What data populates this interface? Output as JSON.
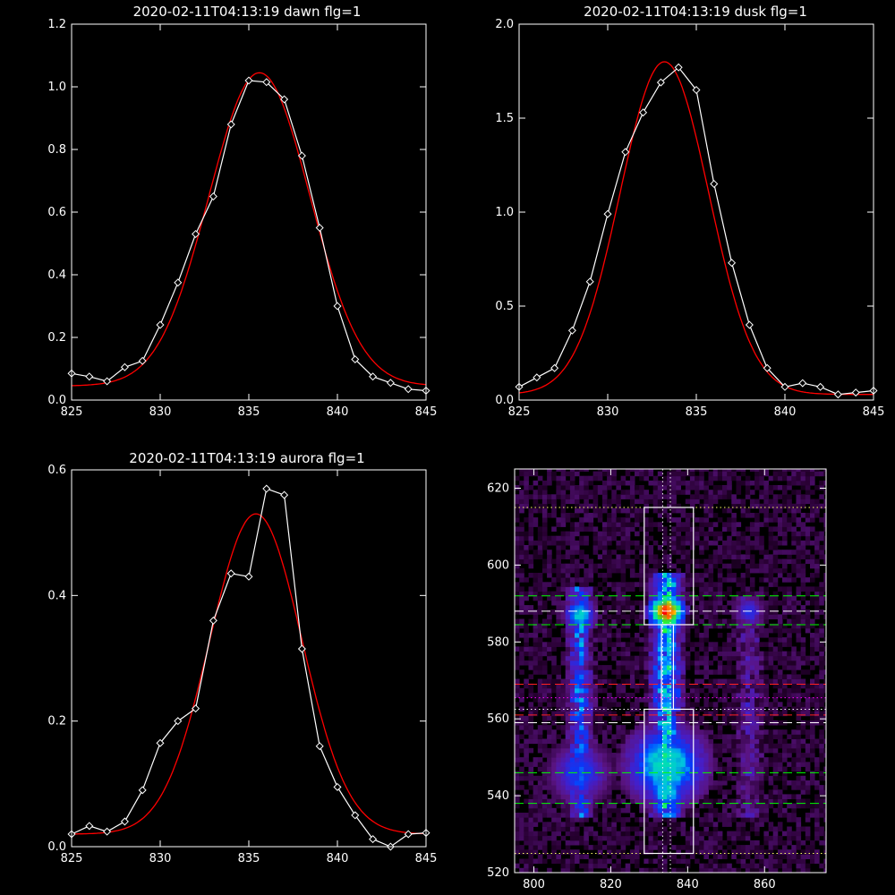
{
  "colors": {
    "background": "#000000",
    "axes": "#ffffff",
    "data": "#ffffff",
    "fit": "#ff0000",
    "guide_green": "#00ff00",
    "guide_red": "#ff2020",
    "guide_magenta": "#ff00ff"
  },
  "chart_data": [
    {
      "type": "line",
      "title": "2020-02-11T04:13:19 dawn flg=1",
      "xlim": [
        825,
        845
      ],
      "ylim": [
        0,
        1.2
      ],
      "xticks": [
        "825",
        "830",
        "835",
        "840",
        "845"
      ],
      "yticks": [
        "0.0",
        "0.2",
        "0.4",
        "0.6",
        "0.8",
        "1.0",
        "1.2"
      ],
      "xtick_values": [
        825,
        830,
        835,
        840,
        845
      ],
      "ytick_values": [
        0,
        0.2,
        0.4,
        0.6,
        0.8,
        1.0,
        1.2
      ],
      "series": [
        {
          "x": [
            825,
            826,
            827,
            828,
            829,
            830,
            831,
            832,
            833,
            834,
            835,
            836,
            837,
            838,
            839,
            840,
            841,
            842,
            843,
            844,
            845
          ],
          "y": [
            0.085,
            0.075,
            0.06,
            0.105,
            0.125,
            0.24,
            0.375,
            0.53,
            0.65,
            0.88,
            1.02,
            1.015,
            0.96,
            0.78,
            0.55,
            0.3,
            0.13,
            0.075,
            0.055,
            0.035,
            0.03
          ],
          "markers": "diamond"
        },
        {
          "fit": "gaussian",
          "amplitude": 1.0,
          "center": 835.6,
          "sigma": 2.85,
          "baseline": 0.045
        }
      ]
    },
    {
      "type": "line",
      "title": "2020-02-11T04:13:19 dusk flg=1",
      "xlim": [
        825,
        845
      ],
      "ylim": [
        0,
        2.0
      ],
      "xticks": [
        "825",
        "830",
        "835",
        "840",
        "845"
      ],
      "yticks": [
        "0.0",
        "0.5",
        "1.0",
        "1.5",
        "2.0"
      ],
      "xtick_values": [
        825,
        830,
        835,
        840,
        845
      ],
      "ytick_values": [
        0,
        0.5,
        1.0,
        1.5,
        2.0
      ],
      "series": [
        {
          "x": [
            825,
            826,
            827,
            828,
            829,
            830,
            831,
            832,
            833,
            834,
            835,
            836,
            837,
            838,
            839,
            840,
            841,
            842,
            843,
            844,
            845
          ],
          "y": [
            0.07,
            0.12,
            0.17,
            0.37,
            0.63,
            0.99,
            1.32,
            1.53,
            1.69,
            1.77,
            1.65,
            1.15,
            0.73,
            0.4,
            0.17,
            0.07,
            0.09,
            0.07,
            0.03,
            0.04,
            0.05
          ],
          "markers": "diamond"
        },
        {
          "fit": "gaussian",
          "amplitude": 1.77,
          "center": 833.2,
          "sigma": 2.5,
          "baseline": 0.03
        }
      ]
    },
    {
      "type": "line",
      "title": "2020-02-11T04:13:19 aurora flg=1",
      "xlim": [
        825,
        845
      ],
      "ylim": [
        0,
        0.6
      ],
      "xticks": [
        "825",
        "830",
        "835",
        "840",
        "845"
      ],
      "yticks": [
        "0.0",
        "0.2",
        "0.4",
        "0.6"
      ],
      "xtick_values": [
        825,
        830,
        835,
        840,
        845
      ],
      "ytick_values": [
        0,
        0.2,
        0.4,
        0.6
      ],
      "series": [
        {
          "x": [
            825,
            826,
            827,
            828,
            829,
            830,
            831,
            832,
            833,
            834,
            835,
            836,
            837,
            838,
            839,
            840,
            841,
            842,
            843,
            844,
            845
          ],
          "y": [
            0.02,
            0.033,
            0.024,
            0.04,
            0.09,
            0.165,
            0.2,
            0.22,
            0.36,
            0.435,
            0.43,
            0.57,
            0.56,
            0.315,
            0.16,
            0.095,
            0.05,
            0.012,
            -0.005,
            0.02,
            0.022
          ],
          "markers": "diamond"
        },
        {
          "fit": "gaussian",
          "amplitude": 0.51,
          "center": 835.4,
          "sigma": 2.6,
          "baseline": 0.02
        }
      ]
    },
    {
      "type": "heatmap",
      "xlim": [
        795,
        876
      ],
      "ylim": [
        520,
        625
      ],
      "xticks": [
        "800",
        "820",
        "840",
        "860"
      ],
      "yticks": [
        "520",
        "540",
        "560",
        "580",
        "600",
        "620"
      ],
      "xtick_values": [
        800,
        820,
        840,
        860
      ],
      "ytick_values": [
        520,
        540,
        560,
        580,
        600,
        620
      ],
      "columns": [
        {
          "x_center": 812,
          "x_width": 4.5,
          "y_from": 534,
          "y_to": 594,
          "intensity": 0.45
        },
        {
          "x_center": 834.5,
          "x_width": 5.5,
          "y_from": 534,
          "y_to": 598,
          "intensity": 0.6
        },
        {
          "x_center": 856,
          "x_width": 4.5,
          "y_from": 534,
          "y_to": 592,
          "intensity": 0.2
        }
      ],
      "hotspots": [
        {
          "x": 834.5,
          "y": 588,
          "radius": 3.5,
          "intensity": 1.0
        },
        {
          "x": 812,
          "y": 587,
          "radius": 3,
          "intensity": 0.62
        },
        {
          "x": 834.5,
          "y": 548,
          "radius": 8,
          "intensity": 0.62
        },
        {
          "x": 834.5,
          "y": 541,
          "radius": 4,
          "intensity": 0.58
        },
        {
          "x": 812,
          "y": 546,
          "radius": 6,
          "intensity": 0.42
        },
        {
          "x": 856,
          "y": 588,
          "radius": 3,
          "intensity": 0.38
        }
      ],
      "boxes": [
        {
          "x0": 828.7,
          "x1": 841.5,
          "y0": 584.5,
          "y1": 615
        },
        {
          "x0": 828.7,
          "x1": 841.5,
          "y0": 525,
          "y1": 562.5
        },
        {
          "x0": 833.2,
          "x1": 836.3,
          "y0": 562.5,
          "y1": 584.5
        }
      ],
      "hlines": [
        {
          "y": 615,
          "style": "dotted",
          "color": "#ffff66",
          "x0": 795,
          "x1": 876
        },
        {
          "y": 525,
          "style": "dotted",
          "color": "#ffff66",
          "x0": 795,
          "x1": 876
        },
        {
          "y": 592,
          "style": "dashed",
          "color": "#00ff00",
          "x0": 795,
          "x1": 876
        },
        {
          "y": 584.5,
          "style": "dashed",
          "color": "#00ff00",
          "x0": 795,
          "x1": 876
        },
        {
          "y": 588,
          "style": "dashed",
          "color": "#ffffff",
          "x0": 795,
          "x1": 876
        },
        {
          "y": 569,
          "style": "dashed",
          "color": "#ff2020",
          "x0": 795,
          "x1": 876
        },
        {
          "y": 565.5,
          "style": "dotted",
          "color": "#ff00ff",
          "x0": 795,
          "x1": 876
        },
        {
          "y": 562.5,
          "style": "dotted",
          "color": "#ffffff",
          "x0": 795,
          "x1": 876
        },
        {
          "y": 561,
          "style": "dashed",
          "color": "#ff2020",
          "x0": 795,
          "x1": 876
        },
        {
          "y": 559,
          "style": "dashed",
          "color": "#ffffff",
          "x0": 795,
          "x1": 876
        },
        {
          "y": 546,
          "style": "dashed",
          "color": "#00ff00",
          "x0": 795,
          "x1": 876
        },
        {
          "y": 538,
          "style": "dashed",
          "color": "#00ff00",
          "x0": 795,
          "x1": 876
        }
      ],
      "vlines": [
        {
          "x": 833.5,
          "style": "dotted",
          "color": "#ffffff",
          "y0": 520,
          "y1": 625
        },
        {
          "x": 835.5,
          "style": "dotted",
          "color": "#ffffff",
          "y0": 520,
          "y1": 625
        }
      ]
    }
  ]
}
